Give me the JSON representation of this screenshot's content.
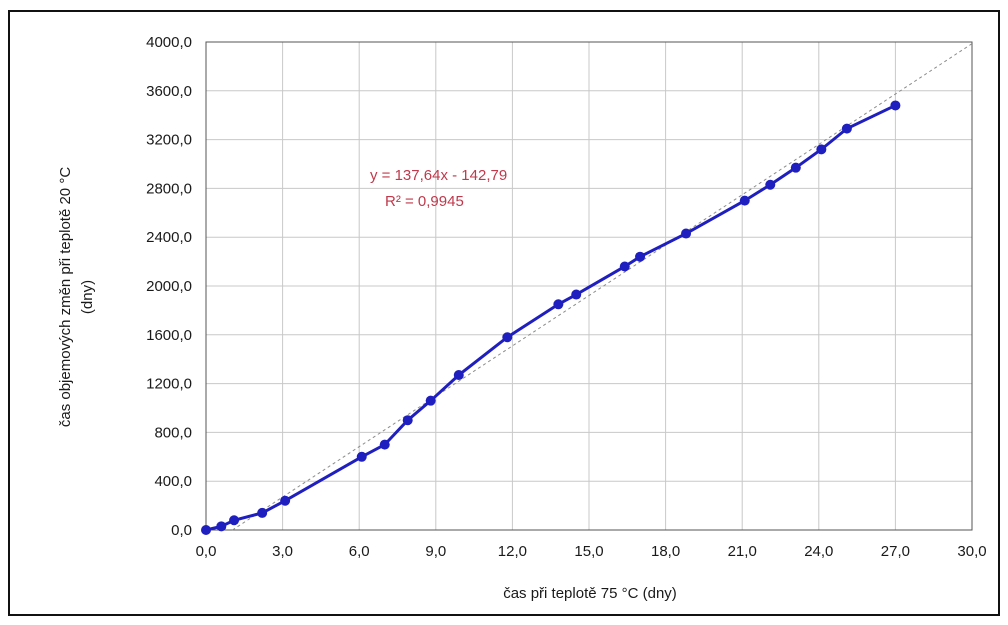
{
  "chart_data": {
    "type": "line",
    "xlabel": "čas při teplotě 75 °C (dny)",
    "ylabel": "čas objemových změn při teplotě 20 °C",
    "ylabel_line2": "(dny)",
    "xlim": [
      0,
      30
    ],
    "ylim": [
      0,
      4000
    ],
    "x_ticks": [
      0,
      3,
      6,
      9,
      12,
      15,
      18,
      21,
      24,
      27,
      30
    ],
    "y_ticks": [
      0,
      400,
      800,
      1200,
      1600,
      2000,
      2400,
      2800,
      3200,
      3600,
      4000
    ],
    "x_tick_labels": [
      "0,0",
      "3,0",
      "6,0",
      "9,0",
      "12,0",
      "15,0",
      "18,0",
      "21,0",
      "24,0",
      "27,0",
      "30,0"
    ],
    "y_tick_labels": [
      "0,0",
      "400,0",
      "800,0",
      "1200,0",
      "1600,0",
      "2000,0",
      "2400,0",
      "2800,0",
      "3200,0",
      "3600,0",
      "4000,0"
    ],
    "grid": true,
    "series": [
      {
        "x": [
          0,
          0.6,
          1.1,
          2.2,
          3.1,
          6.1,
          7.0,
          7.9,
          8.8,
          9.9,
          11.8,
          13.8,
          14.5,
          16.4,
          17.0,
          18.8,
          21.1,
          22.1,
          23.1,
          24.1,
          25.1,
          27.0
        ],
        "y": [
          0,
          30,
          80,
          140,
          240,
          600,
          700,
          900,
          1060,
          1270,
          1580,
          1850,
          1930,
          2160,
          2240,
          2430,
          2700,
          2830,
          2970,
          3120,
          3290,
          3480
        ]
      }
    ],
    "colors": {
      "series": "#1f1fbf",
      "trendline": "#8c8c8c",
      "equation": "#c0394b",
      "grid": "#c8c8c8"
    },
    "trendline": {
      "type": "linear",
      "slope": 137.64,
      "intercept": -142.79,
      "equation_label": "y = 137,64x - 142,79",
      "r2_label": "R² = 0,9945"
    }
  }
}
